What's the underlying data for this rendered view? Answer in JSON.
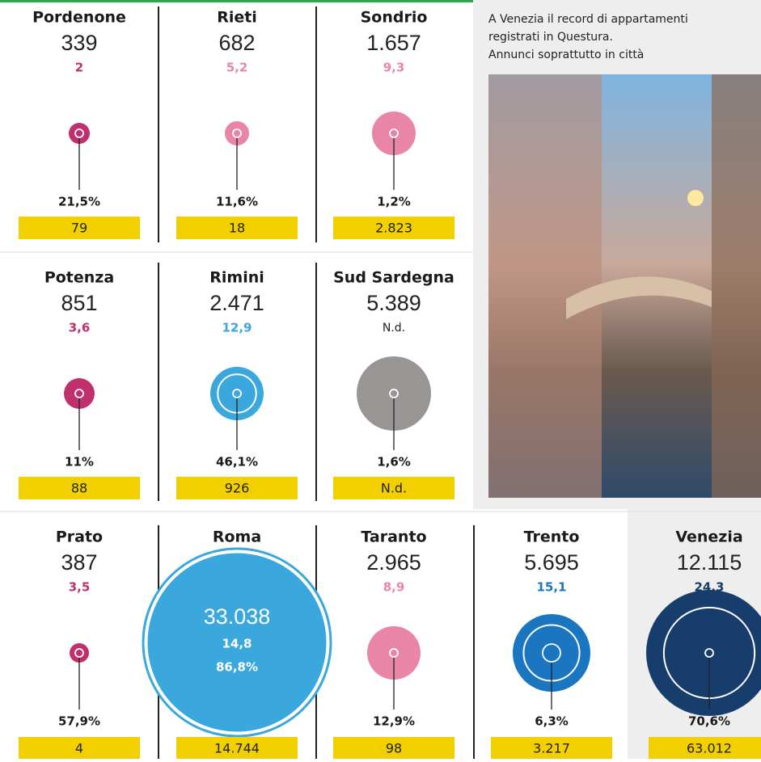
{
  "caption": [
    "A Venezia il record di appartamenti",
    "registrati in Questura.",
    "Annunci soprattutto in città"
  ],
  "cells": [
    {
      "name": "Pordenone",
      "count": "339",
      "rate": "2",
      "share": "21,5%",
      "ads": "79",
      "color": "#c0306e"
    },
    {
      "name": "Rieti",
      "count": "682",
      "rate": "5,2",
      "share": "11,6%",
      "ads": "18",
      "color": "#e986a8"
    },
    {
      "name": "Sondrio",
      "count": "1.657",
      "rate": "9,3",
      "share": "1,2%",
      "ads": "2.823",
      "color": "#e986a8"
    },
    {
      "name": "Potenza",
      "count": "851",
      "rate": "3,6",
      "share": "11%",
      "ads": "88",
      "color": "#c0306e"
    },
    {
      "name": "Rimini",
      "count": "2.471",
      "rate": "12,9",
      "share": "46,1%",
      "ads": "926",
      "color": "#3aa7dd"
    },
    {
      "name": "Sud Sardegna",
      "count": "5.389",
      "rate": "N.d.",
      "share": "1,6%",
      "ads": "N.d.",
      "color": "#9a9595"
    },
    {
      "name": "Prato",
      "count": "387",
      "rate": "3,5",
      "share": "57,9%",
      "ads": "4",
      "color": "#c0306e"
    },
    {
      "name": "Roma",
      "count": "33.038",
      "rate": "14,8",
      "share": "86,8%",
      "ads": "14.744",
      "color": "#3aa7dd"
    },
    {
      "name": "Taranto",
      "count": "2.965",
      "rate": "8,9",
      "share": "12,9%",
      "ads": "98",
      "color": "#e986a8"
    },
    {
      "name": "Trento",
      "count": "5.695",
      "rate": "15,1",
      "share": "6,3%",
      "ads": "3.217",
      "color": "#1a76c0"
    },
    {
      "name": "Venezia",
      "count": "12.115",
      "rate": "24,3",
      "share": "70,6%",
      "ads": "63.012",
      "color": "#163d6b"
    }
  ]
}
